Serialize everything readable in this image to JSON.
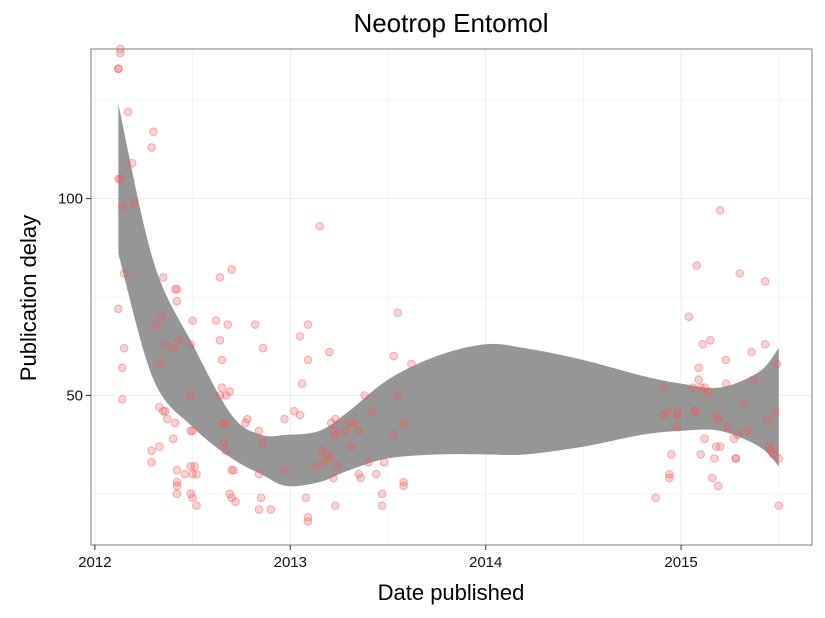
{
  "chart_data": {
    "type": "scatter",
    "title": "Neotrop Entomol",
    "xlabel": "Date published",
    "ylabel": "Publication delay",
    "xlim": [
      2011.98,
      2015.67
    ],
    "ylim": [
      12,
      138
    ],
    "x_ticks": [
      2012,
      2013,
      2014,
      2015
    ],
    "y_ticks": [
      50,
      100
    ],
    "x_tick_labels": [
      "2012",
      "2013",
      "2014",
      "2015"
    ],
    "y_tick_labels": [
      "50",
      "100"
    ],
    "grid": true,
    "legend": "none",
    "colors": {
      "points": "#f05a5a",
      "band": "#7f7f7f",
      "grid": "#ebebeb",
      "panel_border": "#999999"
    },
    "points": [
      [
        2012.12,
        133
      ],
      [
        2012.12,
        133
      ],
      [
        2012.13,
        137
      ],
      [
        2012.13,
        138
      ],
      [
        2012.12,
        105
      ],
      [
        2012.13,
        105
      ],
      [
        2012.17,
        122
      ],
      [
        2012.19,
        109
      ],
      [
        2012.2,
        99
      ],
      [
        2012.14,
        98
      ],
      [
        2012.12,
        72
      ],
      [
        2012.15,
        81
      ],
      [
        2012.15,
        62
      ],
      [
        2012.14,
        57
      ],
      [
        2012.14,
        49
      ],
      [
        2012.3,
        117
      ],
      [
        2012.29,
        113
      ],
      [
        2012.31,
        68
      ],
      [
        2012.34,
        70
      ],
      [
        2012.33,
        58
      ],
      [
        2012.35,
        80
      ],
      [
        2012.36,
        63
      ],
      [
        2012.33,
        47
      ],
      [
        2012.35,
        46
      ],
      [
        2012.36,
        46
      ],
      [
        2012.37,
        44
      ],
      [
        2012.33,
        37
      ],
      [
        2012.29,
        36
      ],
      [
        2012.29,
        33
      ],
      [
        2012.41,
        77
      ],
      [
        2012.42,
        77
      ],
      [
        2012.42,
        74
      ],
      [
        2012.4,
        62
      ],
      [
        2012.43,
        64
      ],
      [
        2012.41,
        43
      ],
      [
        2012.4,
        39
      ],
      [
        2012.42,
        31
      ],
      [
        2012.42,
        28
      ],
      [
        2012.42,
        27
      ],
      [
        2012.42,
        25
      ],
      [
        2012.46,
        30
      ],
      [
        2012.49,
        63
      ],
      [
        2012.5,
        69
      ],
      [
        2012.49,
        50
      ],
      [
        2012.49,
        41
      ],
      [
        2012.5,
        41
      ],
      [
        2012.49,
        32
      ],
      [
        2012.51,
        32
      ],
      [
        2012.5,
        30
      ],
      [
        2012.52,
        30
      ],
      [
        2012.49,
        25
      ],
      [
        2012.5,
        24
      ],
      [
        2012.52,
        22
      ],
      [
        2012.62,
        69
      ],
      [
        2012.64,
        80
      ],
      [
        2012.64,
        64
      ],
      [
        2012.65,
        59
      ],
      [
        2012.65,
        52
      ],
      [
        2012.64,
        50
      ],
      [
        2012.67,
        50
      ],
      [
        2012.69,
        51
      ],
      [
        2012.68,
        68
      ],
      [
        2012.7,
        82
      ],
      [
        2012.65,
        43
      ],
      [
        2012.67,
        43
      ],
      [
        2012.66,
        38
      ],
      [
        2012.67,
        36
      ],
      [
        2012.7,
        31
      ],
      [
        2012.71,
        31
      ],
      [
        2012.69,
        25
      ],
      [
        2012.7,
        24
      ],
      [
        2012.72,
        23
      ],
      [
        2012.77,
        43
      ],
      [
        2012.78,
        44
      ],
      [
        2012.82,
        68
      ],
      [
        2012.86,
        62
      ],
      [
        2012.84,
        41
      ],
      [
        2012.86,
        38
      ],
      [
        2012.84,
        30
      ],
      [
        2012.85,
        24
      ],
      [
        2012.84,
        21
      ],
      [
        2012.9,
        21
      ],
      [
        2012.97,
        44
      ],
      [
        2012.97,
        31
      ],
      [
        2013.02,
        46
      ],
      [
        2013.05,
        45
      ],
      [
        2013.05,
        65
      ],
      [
        2013.06,
        53
      ],
      [
        2013.09,
        68
      ],
      [
        2013.09,
        59
      ],
      [
        2013.08,
        24
      ],
      [
        2013.09,
        19
      ],
      [
        2013.09,
        18
      ],
      [
        2013.15,
        93
      ],
      [
        2013.2,
        61
      ],
      [
        2013.16,
        36
      ],
      [
        2013.17,
        33
      ],
      [
        2013.19,
        35
      ],
      [
        2013.2,
        34
      ],
      [
        2013.21,
        43
      ],
      [
        2013.22,
        41
      ],
      [
        2013.23,
        44
      ],
      [
        2013.23,
        40
      ],
      [
        2013.13,
        32
      ],
      [
        2013.22,
        29
      ],
      [
        2013.24,
        32
      ],
      [
        2013.23,
        22
      ],
      [
        2013.28,
        41
      ],
      [
        2013.3,
        43
      ],
      [
        2013.31,
        37
      ],
      [
        2013.33,
        43
      ],
      [
        2013.35,
        41
      ],
      [
        2013.35,
        30
      ],
      [
        2013.36,
        29
      ],
      [
        2013.38,
        50
      ],
      [
        2013.4,
        33
      ],
      [
        2013.42,
        46
      ],
      [
        2013.44,
        30
      ],
      [
        2013.47,
        25
      ],
      [
        2013.47,
        22
      ],
      [
        2013.48,
        33
      ],
      [
        2013.53,
        60
      ],
      [
        2013.55,
        71
      ],
      [
        2013.55,
        50
      ],
      [
        2013.53,
        40
      ],
      [
        2013.58,
        43
      ],
      [
        2013.58,
        28
      ],
      [
        2013.58,
        27
      ],
      [
        2013.62,
        58
      ],
      [
        2014.87,
        24
      ],
      [
        2014.91,
        52
      ],
      [
        2014.91,
        45
      ],
      [
        2014.93,
        46
      ],
      [
        2014.94,
        30
      ],
      [
        2014.94,
        29
      ],
      [
        2014.95,
        35
      ],
      [
        2014.98,
        46
      ],
      [
        2014.98,
        42
      ],
      [
        2014.98,
        45
      ],
      [
        2015.04,
        70
      ],
      [
        2015.06,
        52
      ],
      [
        2015.07,
        46
      ],
      [
        2015.07,
        46
      ],
      [
        2015.08,
        83
      ],
      [
        2015.09,
        57
      ],
      [
        2015.09,
        54
      ],
      [
        2015.1,
        52
      ],
      [
        2015.11,
        63
      ],
      [
        2015.12,
        52
      ],
      [
        2015.1,
        35
      ],
      [
        2015.12,
        39
      ],
      [
        2015.14,
        51
      ],
      [
        2015.15,
        64
      ],
      [
        2015.16,
        29
      ],
      [
        2015.17,
        34
      ],
      [
        2015.18,
        37
      ],
      [
        2015.19,
        27
      ],
      [
        2015.18,
        45
      ],
      [
        2015.19,
        44
      ],
      [
        2015.2,
        97
      ],
      [
        2015.2,
        37
      ],
      [
        2015.23,
        59
      ],
      [
        2015.23,
        53
      ],
      [
        2015.24,
        42
      ],
      [
        2015.27,
        39
      ],
      [
        2015.28,
        34
      ],
      [
        2015.28,
        34
      ],
      [
        2015.29,
        40
      ],
      [
        2015.3,
        81
      ],
      [
        2015.32,
        48
      ],
      [
        2015.34,
        41
      ],
      [
        2015.36,
        61
      ],
      [
        2015.37,
        54
      ],
      [
        2015.43,
        79
      ],
      [
        2015.43,
        63
      ],
      [
        2015.44,
        44
      ],
      [
        2015.45,
        37
      ],
      [
        2015.46,
        36
      ],
      [
        2015.47,
        35
      ],
      [
        2015.48,
        46
      ],
      [
        2015.49,
        58
      ],
      [
        2015.5,
        34
      ],
      [
        2015.5,
        22
      ]
    ],
    "smooth_band": {
      "x": [
        2012.12,
        2012.3,
        2012.5,
        2012.7,
        2012.85,
        2012.98,
        2013.15,
        2013.3,
        2013.5,
        2013.75,
        2014.0,
        2014.2,
        2014.5,
        2014.8,
        2015.0,
        2015.2,
        2015.4,
        2015.5
      ],
      "lower": [
        86,
        54,
        42,
        34,
        30,
        27,
        28,
        31,
        34,
        35,
        35,
        35,
        37,
        40,
        41,
        41,
        37,
        32
      ],
      "upper": [
        124,
        84,
        63,
        45,
        40,
        40,
        41,
        46,
        54,
        60,
        63,
        62,
        59,
        55,
        53,
        52,
        56,
        62
      ]
    }
  }
}
